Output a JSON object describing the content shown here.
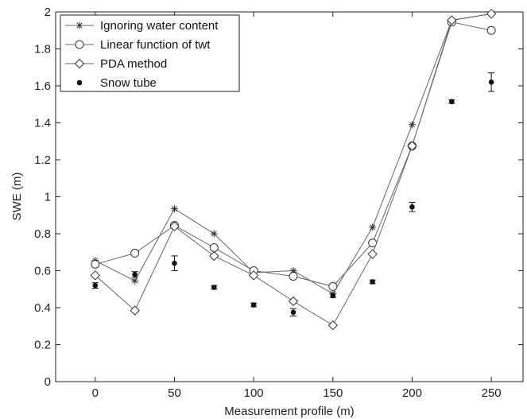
{
  "chart_data": {
    "type": "line",
    "title": "",
    "xlabel": "Measurement profile (m)",
    "ylabel": "SWE (m)",
    "xlim": [
      -25,
      270
    ],
    "ylim": [
      0,
      2
    ],
    "xticks": [
      0,
      50,
      100,
      150,
      200,
      250
    ],
    "yticks": [
      0,
      0.2,
      0.4,
      0.6,
      0.8,
      1,
      1.2,
      1.4,
      1.6,
      1.8,
      2
    ],
    "ytick_labels": [
      "0",
      "0.2",
      "0.4",
      "0.6",
      "0.8",
      "1",
      "1.2",
      "1.4",
      "1.6",
      "1.8",
      "2"
    ],
    "grid": false,
    "legend_position": "top-left",
    "x": [
      0,
      25,
      50,
      75,
      100,
      125,
      150,
      175,
      200,
      225,
      250
    ],
    "series": [
      {
        "name": "Ignoring water content",
        "marker": "asterisk",
        "line": true,
        "values": [
          0.655,
          0.545,
          0.935,
          0.8,
          0.59,
          0.6,
          0.475,
          0.835,
          1.39,
          1.955,
          1.99
        ]
      },
      {
        "name": "Linear function of twt",
        "marker": "circle",
        "line": true,
        "values": [
          0.635,
          0.695,
          0.845,
          0.725,
          0.6,
          0.57,
          0.515,
          0.75,
          1.275,
          1.945,
          1.9
        ]
      },
      {
        "name": "PDA method",
        "marker": "diamond",
        "line": true,
        "values": [
          0.575,
          0.385,
          0.84,
          0.68,
          0.575,
          0.435,
          0.305,
          0.69,
          1.275,
          1.955,
          1.99
        ]
      },
      {
        "name": "Snow tube",
        "marker": "dot",
        "line": false,
        "values": [
          0.52,
          0.58,
          0.64,
          0.51,
          0.415,
          0.375,
          0.465,
          0.54,
          0.945,
          1.515,
          1.62
        ],
        "error": [
          0.015,
          0.015,
          0.04,
          0.01,
          0.01,
          0.02,
          0.01,
          0.01,
          0.025,
          0.01,
          0.05
        ]
      }
    ],
    "colors": {
      "line": "#666666",
      "marker": "#333333",
      "dot": "#111111",
      "axis": "#222222"
    }
  }
}
